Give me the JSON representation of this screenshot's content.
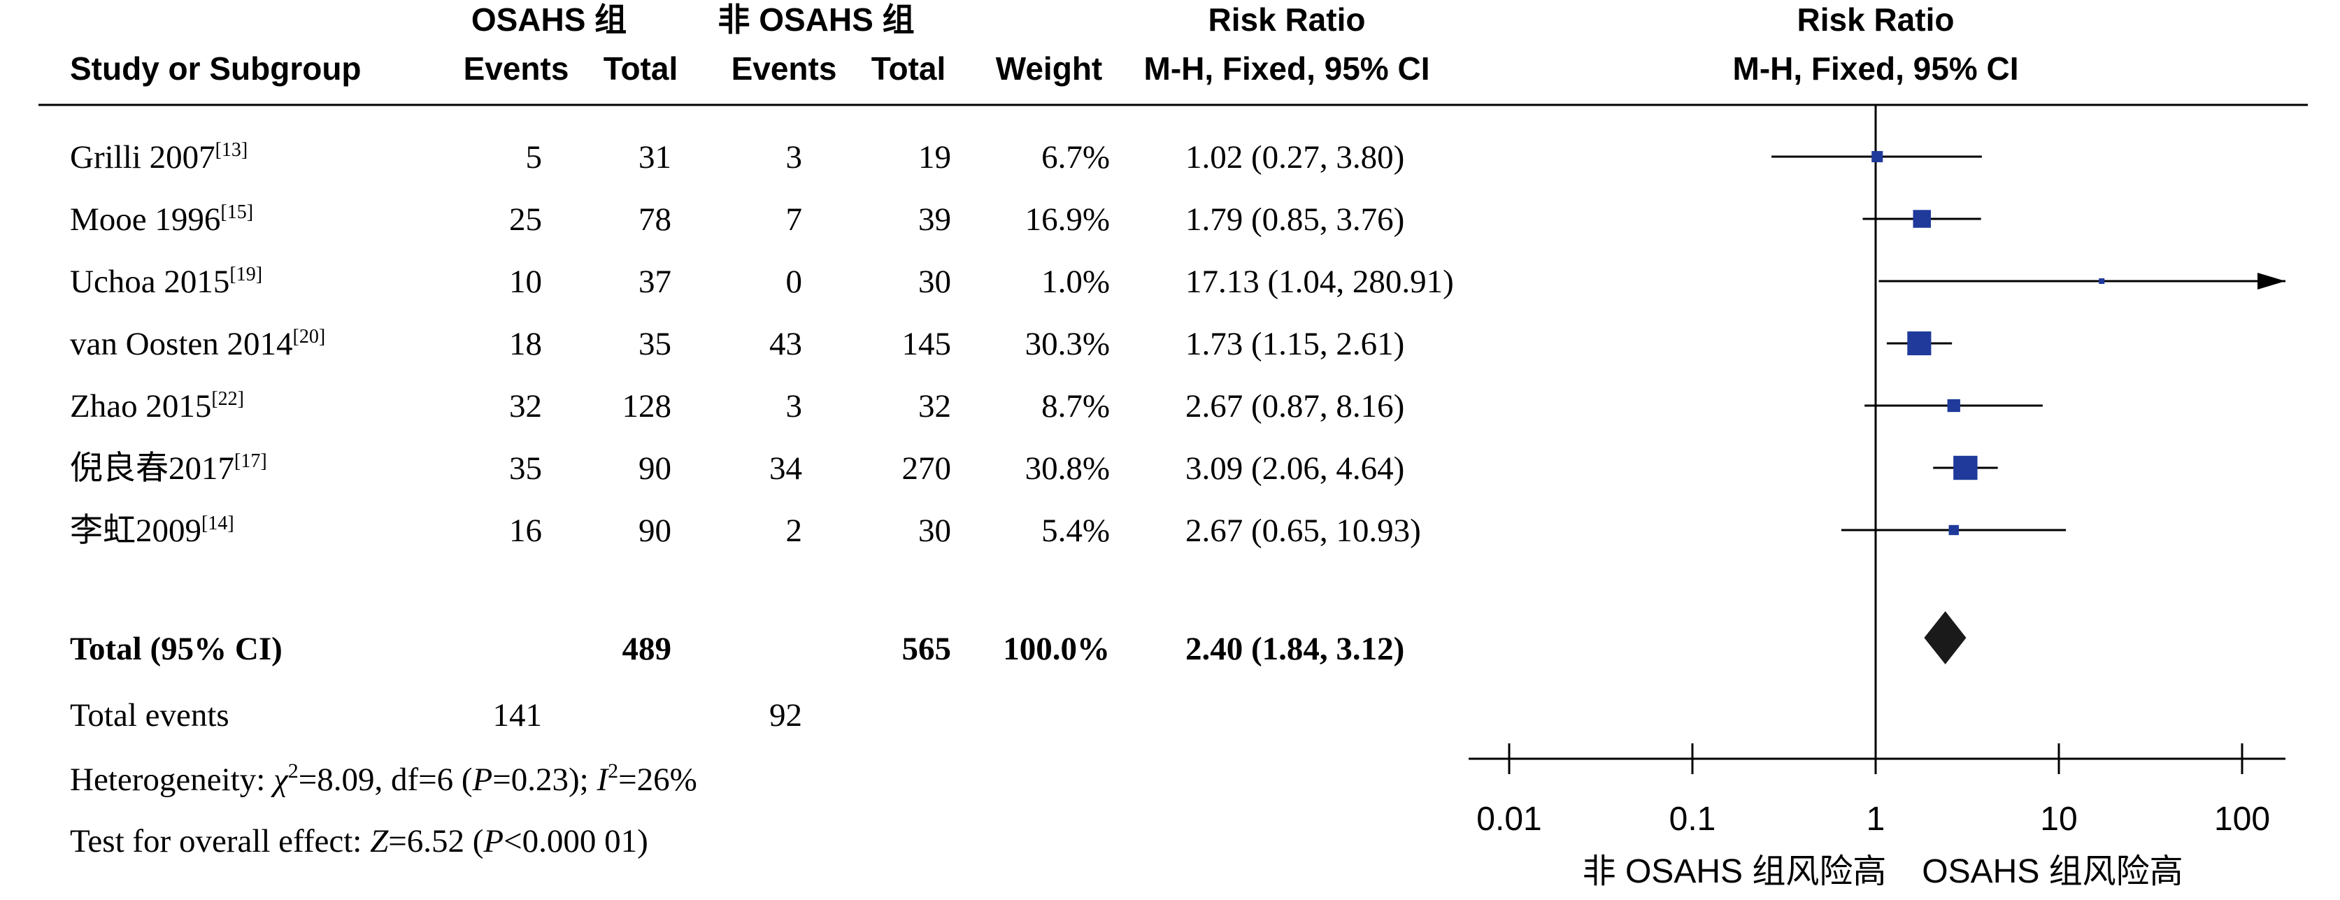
{
  "header": {
    "group1_title": "OSAHS 组",
    "group2_title": "非 OSAHS 组",
    "study_label": "Study or Subgroup",
    "events_label": "Events",
    "total_label": "Total",
    "weight_label": "Weight",
    "rr_title": "Risk Ratio",
    "rr_method": "M-H, Fixed, 95% CI",
    "plot_title": "Risk Ratio",
    "plot_method": "M-H, Fixed, 95% CI"
  },
  "studies": [
    {
      "name": "Grilli 2007",
      "ref": "[13]",
      "e1": "5",
      "t1": "31",
      "e2": "3",
      "t2": "19",
      "weight": "6.7%",
      "ci_text": "1.02 (0.27, 3.80)"
    },
    {
      "name": "Mooe 1996",
      "ref": "[15]",
      "e1": "25",
      "t1": "78",
      "e2": "7",
      "t2": "39",
      "weight": "16.9%",
      "ci_text": "1.79 (0.85, 3.76)"
    },
    {
      "name": "Uchoa 2015",
      "ref": "[19]",
      "e1": "10",
      "t1": "37",
      "e2": "0",
      "t2": "30",
      "weight": "1.0%",
      "ci_text": "17.13 (1.04, 280.91)"
    },
    {
      "name": "van Oosten 2014",
      "ref": "[20]",
      "e1": "18",
      "t1": "35",
      "e2": "43",
      "t2": "145",
      "weight": "30.3%",
      "ci_text": "1.73 (1.15, 2.61)"
    },
    {
      "name": "Zhao 2015",
      "ref": "[22]",
      "e1": "32",
      "t1": "128",
      "e2": "3",
      "t2": "32",
      "weight": "8.7%",
      "ci_text": "2.67 (0.87, 8.16)"
    },
    {
      "name": "倪良春2017",
      "ref": "[17]",
      "e1": "35",
      "t1": "90",
      "e2": "34",
      "t2": "270",
      "weight": "30.8%",
      "ci_text": "3.09 (2.06, 4.64)"
    },
    {
      "name": "李虹2009",
      "ref": "[14]",
      "e1": "16",
      "t1": "90",
      "e2": "2",
      "t2": "30",
      "weight": "5.4%",
      "ci_text": "2.67 (0.65, 10.93)"
    }
  ],
  "total": {
    "label": "Total (95% CI)",
    "t1": "489",
    "t2": "565",
    "weight": "100.0%",
    "ci_text": "2.40 (1.84, 3.12)"
  },
  "events": {
    "label": "Total events",
    "e1": "141",
    "e2": "92"
  },
  "footer": {
    "heterogeneity": {
      "pre": "Heterogeneity: ",
      "chi": "χ",
      "chi_exp": "2",
      "val": "=8.09, df=6 (",
      "p": "P",
      "p_val": "=0.23); ",
      "i": "I",
      "i_exp": "2",
      "i_val": "=26%"
    },
    "overall": {
      "pre": "Test for overall effect: ",
      "z": "Z",
      "z_val": "=6.52 (",
      "p": "P",
      "p_val": "<0.000 01)"
    }
  },
  "axis": {
    "ticks": [
      "0.01",
      "0.1",
      "1",
      "10",
      "100"
    ],
    "favours_left": "非 OSAHS 组风险高",
    "favours_right": "OSAHS 组风险高"
  },
  "colors": {
    "marker": "#1f3a9a",
    "line": "#000000",
    "diamond": "#1a1a1a"
  },
  "chart_data": {
    "type": "forest",
    "x_scale": "log",
    "xlim": [
      0.01,
      100
    ],
    "null_line": 1,
    "studies": [
      {
        "name": "Grilli 2007",
        "rr": 1.02,
        "lower": 0.27,
        "upper": 3.8,
        "weight": 6.7
      },
      {
        "name": "Mooe 1996",
        "rr": 1.79,
        "lower": 0.85,
        "upper": 3.76,
        "weight": 16.9
      },
      {
        "name": "Uchoa 2015",
        "rr": 17.13,
        "lower": 1.04,
        "upper": 280.91,
        "weight": 1.0
      },
      {
        "name": "van Oosten 2014",
        "rr": 1.73,
        "lower": 1.15,
        "upper": 2.61,
        "weight": 30.3
      },
      {
        "name": "Zhao 2015",
        "rr": 2.67,
        "lower": 0.87,
        "upper": 8.16,
        "weight": 8.7
      },
      {
        "name": "倪良春2017",
        "rr": 3.09,
        "lower": 2.06,
        "upper": 4.64,
        "weight": 30.8
      },
      {
        "name": "李虹2009",
        "rr": 2.67,
        "lower": 0.65,
        "upper": 10.93,
        "weight": 5.4
      }
    ],
    "pooled": {
      "rr": 2.4,
      "lower": 1.84,
      "upper": 3.12
    }
  }
}
